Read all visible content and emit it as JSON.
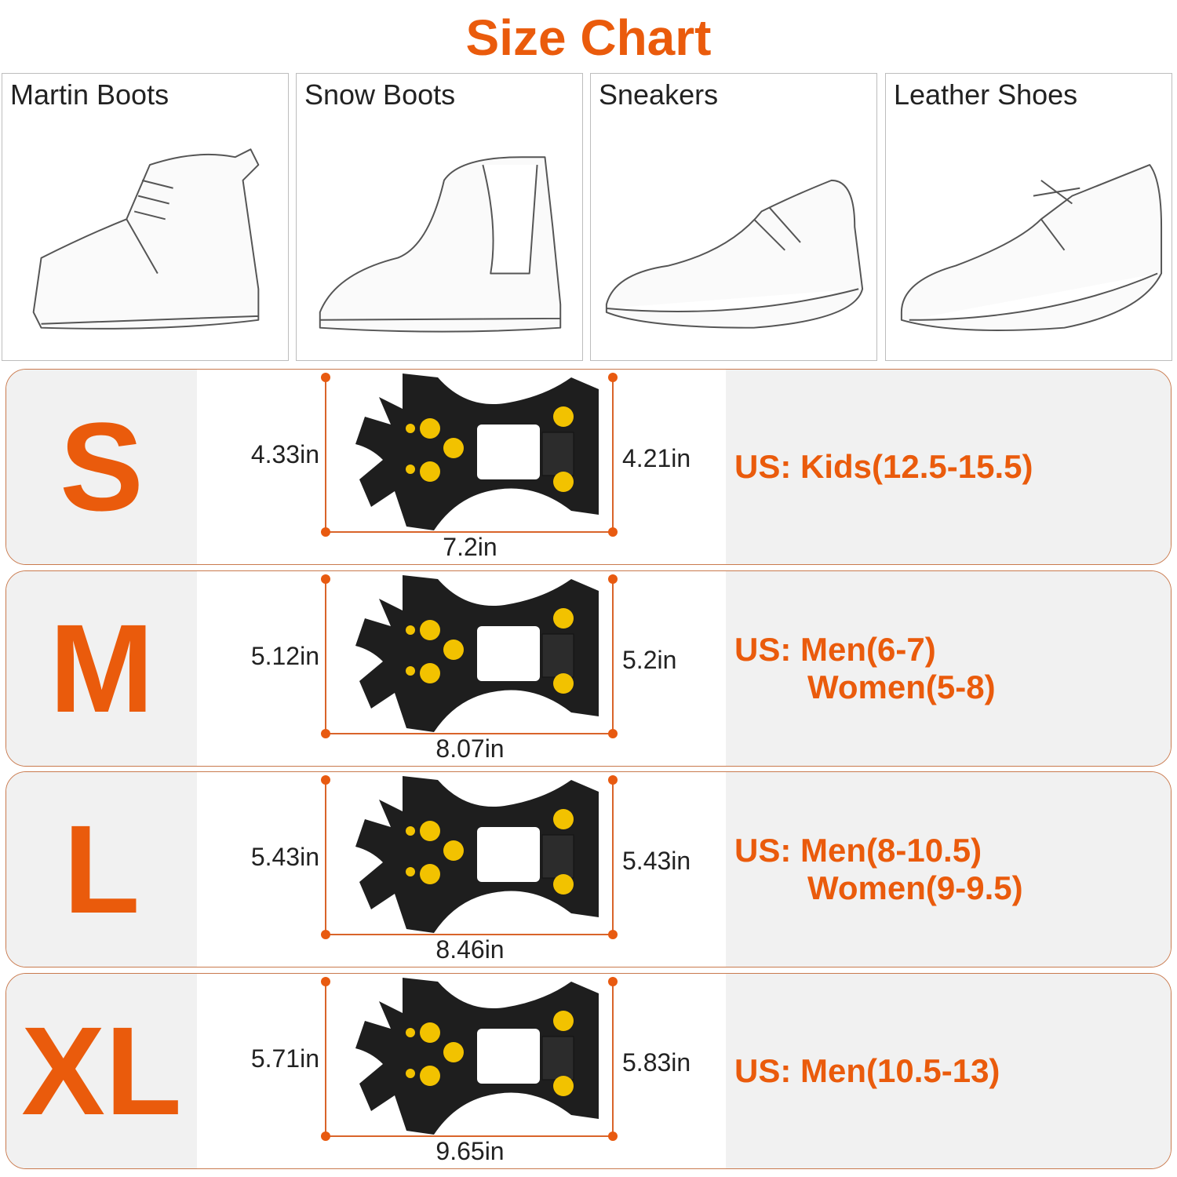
{
  "title": "Size Chart",
  "colors": {
    "accent": "#ea5b0c",
    "row_border": "#c97a4e",
    "panel_gray": "#f1f1f1",
    "cleat_body": "#1e1e1e",
    "cleat_studs": "#f2c200"
  },
  "shoe_types": [
    {
      "label": "Martin Boots",
      "icon": "boot-sketch"
    },
    {
      "label": "Snow Boots",
      "icon": "snow-boot-sketch"
    },
    {
      "label": "Sneakers",
      "icon": "sneaker-sketch"
    },
    {
      "label": "Leather Shoes",
      "icon": "leather-shoe-sketch"
    }
  ],
  "sizes": [
    {
      "size": "S",
      "left_height": "4.33in",
      "right_height": "4.21in",
      "length": "7.2in",
      "us_line1": "US: Kids(12.5-15.5)",
      "us_line2": ""
    },
    {
      "size": "M",
      "left_height": "5.12in",
      "right_height": "5.2in",
      "length": "8.07in",
      "us_line1": "US: Men(6-7)",
      "us_line2": "Women(5-8)"
    },
    {
      "size": "L",
      "left_height": "5.43in",
      "right_height": "5.43in",
      "length": "8.46in",
      "us_line1": "US: Men(8-10.5)",
      "us_line2": "Women(9-9.5)"
    },
    {
      "size": "XL",
      "left_height": "5.71in",
      "right_height": "5.83in",
      "length": "9.65in",
      "us_line1": "US: Men(10.5-13)",
      "us_line2": ""
    }
  ]
}
